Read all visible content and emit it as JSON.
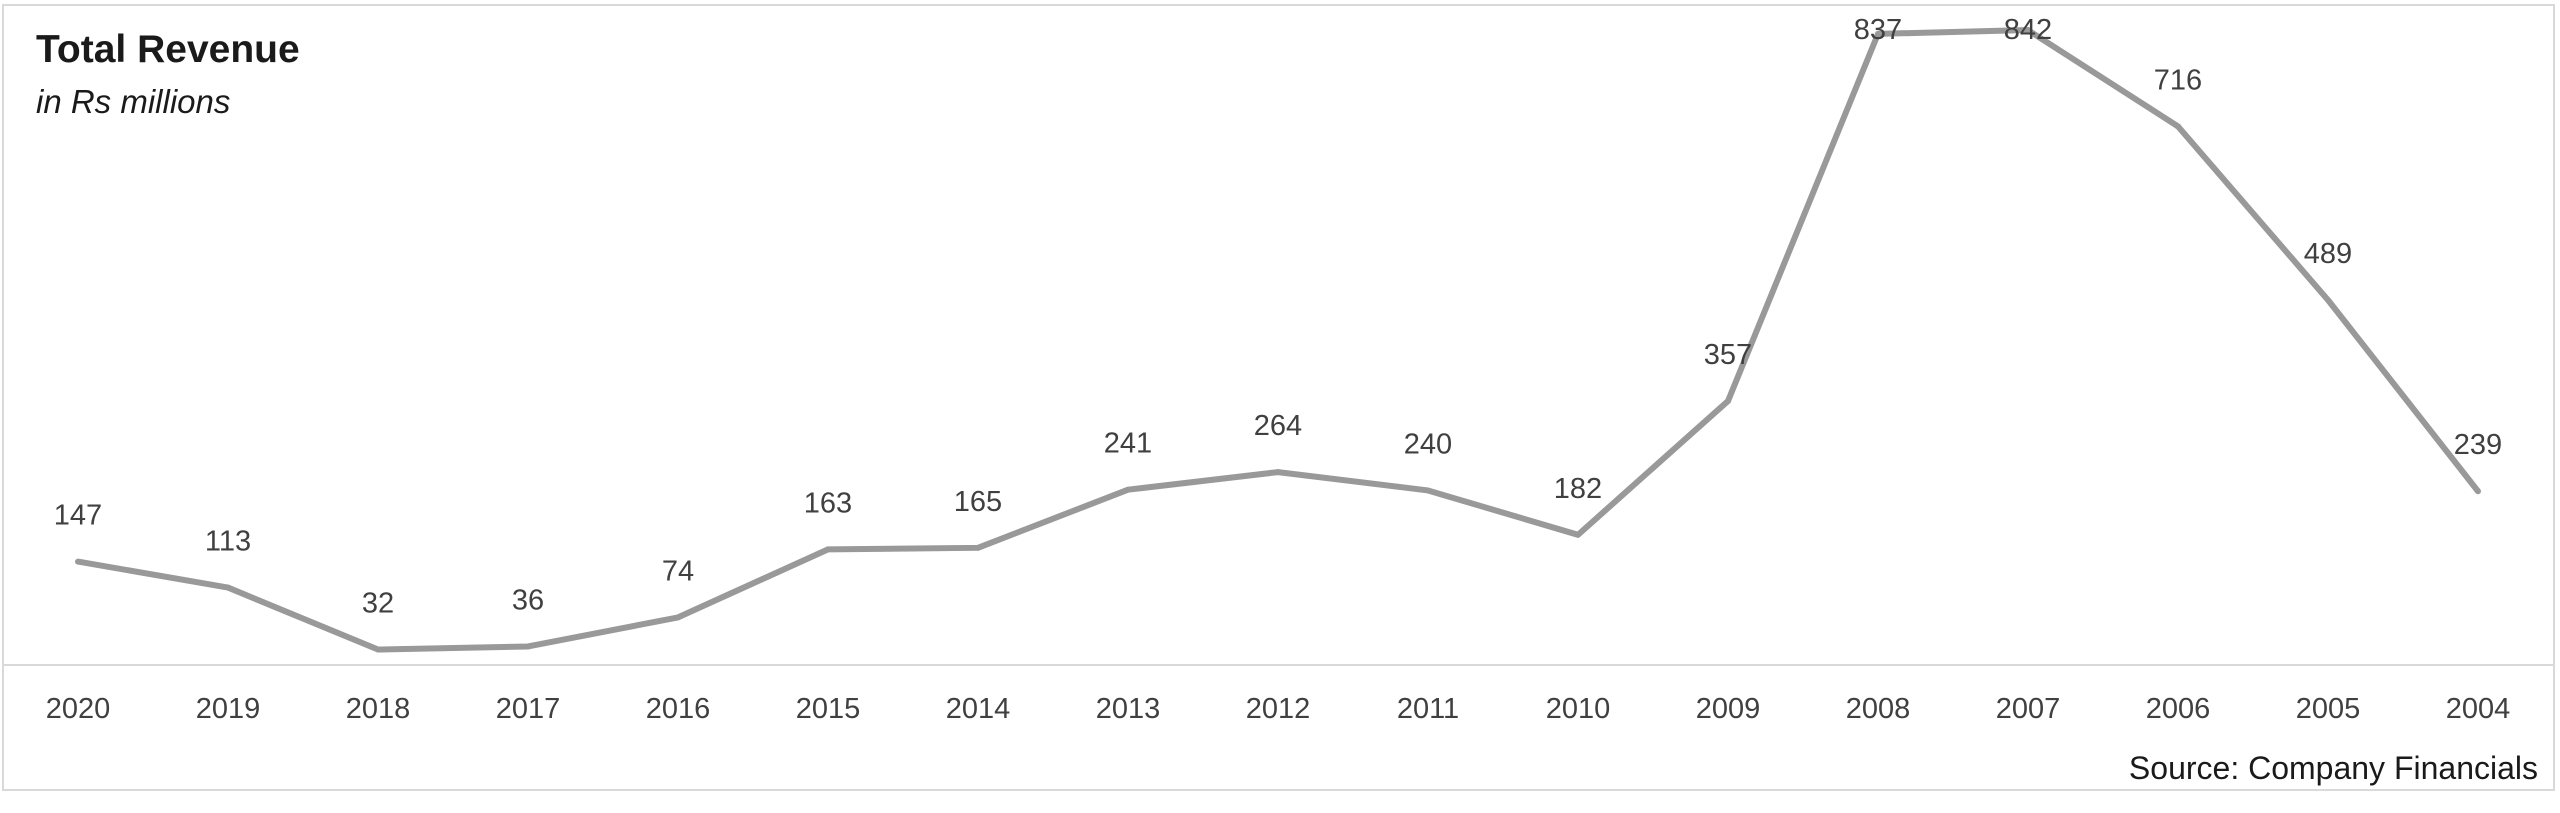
{
  "chart_data": {
    "type": "line",
    "title": "Total Revenue",
    "subtitle": "in Rs millions",
    "source": "Source: Company Financials",
    "categories": [
      "2020",
      "2019",
      "2018",
      "2017",
      "2016",
      "2015",
      "2014",
      "2013",
      "2012",
      "2011",
      "2010",
      "2009",
      "2008",
      "2007",
      "2006",
      "2005",
      "2004"
    ],
    "series": [
      {
        "values": [
          147,
          113,
          32,
          36,
          74,
          163,
          165,
          241,
          264,
          240,
          182,
          357,
          837,
          842,
          716,
          489,
          239
        ],
        "color": "#999999"
      }
    ],
    "xlabel": "",
    "ylabel": "",
    "ylim": [
      0,
      880
    ],
    "grid": false,
    "data_labels": true,
    "axis_color": "#d9d9d9"
  }
}
